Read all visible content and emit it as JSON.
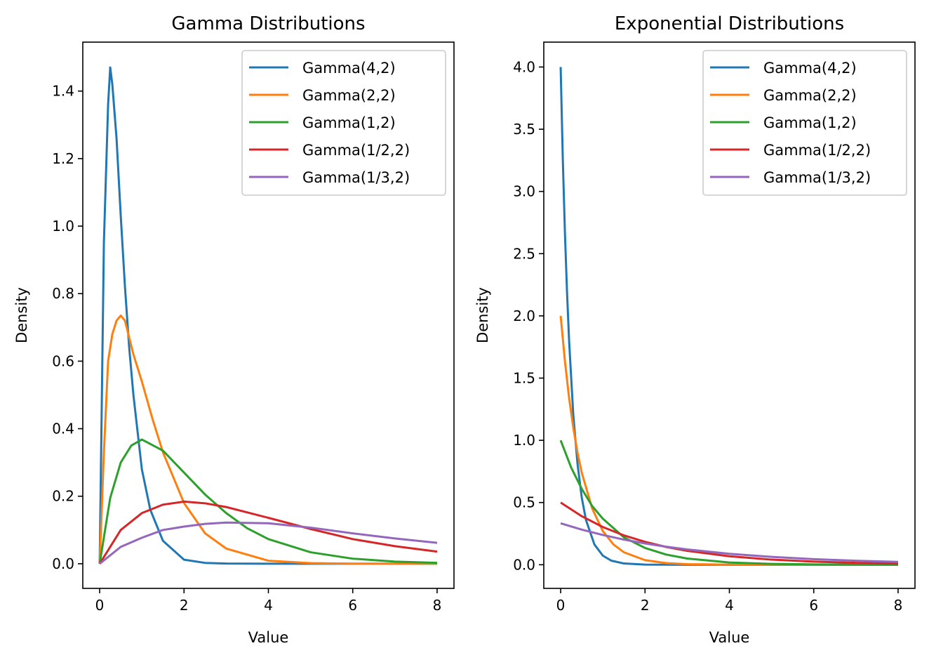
{
  "chart_data": [
    {
      "type": "line",
      "title": "Gamma Distributions",
      "xlabel": "Value",
      "ylabel": "Density",
      "xlim": [
        -0.4,
        8.4
      ],
      "ylim": [
        -0.073,
        1.545
      ],
      "xticks": [
        0,
        2,
        4,
        6,
        8
      ],
      "xtick_labels": [
        "0",
        "2",
        "4",
        "6",
        "8"
      ],
      "yticks": [
        0.0,
        0.2,
        0.4,
        0.6,
        0.8,
        1.0,
        1.2,
        1.4
      ],
      "ytick_labels": [
        "0.0",
        "0.2",
        "0.4",
        "0.6",
        "0.8",
        "1.0",
        "1.2",
        "1.4"
      ],
      "legend_position": "upper-right",
      "grid": false,
      "series": [
        {
          "name": "Gamma(4,2)",
          "color": "#1f77b4",
          "x": [
            0,
            0.1,
            0.2,
            0.25,
            0.3,
            0.4,
            0.5,
            0.6,
            0.7,
            0.8,
            1.0,
            1.2,
            1.5,
            2.0,
            2.5,
            3,
            4,
            5,
            6,
            7,
            8
          ],
          "y": [
            0,
            0.95,
            1.36,
            1.47,
            1.42,
            1.26,
            1.03,
            0.82,
            0.64,
            0.5,
            0.28,
            0.16,
            0.068,
            0.012,
            0.0025,
            0.0005,
            0,
            0,
            0,
            0,
            0
          ]
        },
        {
          "name": "Gamma(2,2)",
          "color": "#ff7f0e",
          "x": [
            0,
            0.1,
            0.2,
            0.3,
            0.4,
            0.5,
            0.6,
            0.7,
            0.8,
            1.0,
            1.25,
            1.5,
            2.0,
            2.5,
            3,
            4,
            5,
            6,
            7,
            8
          ],
          "y": [
            0,
            0.33,
            0.6,
            0.68,
            0.72,
            0.735,
            0.72,
            0.67,
            0.62,
            0.54,
            0.43,
            0.33,
            0.18,
            0.09,
            0.045,
            0.009,
            0.002,
            0,
            0,
            0
          ]
        },
        {
          "name": "Gamma(1,2)",
          "color": "#2ca02c",
          "x": [
            0,
            0.25,
            0.5,
            0.75,
            1,
            1.5,
            2,
            2.5,
            3,
            3.5,
            4,
            5,
            6,
            7,
            8
          ],
          "y": [
            0,
            0.195,
            0.3,
            0.35,
            0.368,
            0.335,
            0.27,
            0.205,
            0.15,
            0.105,
            0.073,
            0.034,
            0.015,
            0.0064,
            0.0027
          ]
        },
        {
          "name": "Gamma(1/2,2)",
          "color": "#d62728",
          "x": [
            0,
            0.5,
            1,
            1.5,
            2,
            2.5,
            3,
            4,
            5,
            6,
            7,
            8
          ],
          "y": [
            0,
            0.1,
            0.15,
            0.175,
            0.184,
            0.179,
            0.168,
            0.136,
            0.103,
            0.073,
            0.052,
            0.036
          ]
        },
        {
          "name": "Gamma(1/3,2)",
          "color": "#9467bd",
          "x": [
            0,
            0.5,
            1,
            1.5,
            2,
            2.5,
            3,
            4,
            5,
            6,
            7,
            8
          ],
          "y": [
            0,
            0.05,
            0.077,
            0.1,
            0.11,
            0.118,
            0.122,
            0.12,
            0.107,
            0.09,
            0.075,
            0.062
          ]
        }
      ]
    },
    {
      "type": "line",
      "title": "Exponential Distributions",
      "xlabel": "Value",
      "ylabel": "Density",
      "xlim": [
        -0.4,
        8.4
      ],
      "ylim": [
        -0.19,
        4.2
      ],
      "xticks": [
        0,
        2,
        4,
        6,
        8
      ],
      "xtick_labels": [
        "0",
        "2",
        "4",
        "6",
        "8"
      ],
      "yticks": [
        0.0,
        0.5,
        1.0,
        1.5,
        2.0,
        2.5,
        3.0,
        3.5,
        4.0
      ],
      "ytick_labels": [
        "0.0",
        "0.5",
        "1.0",
        "1.5",
        "2.0",
        "2.5",
        "3.0",
        "3.5",
        "4.0"
      ],
      "legend_position": "upper-right",
      "grid": false,
      "series": [
        {
          "name": "Gamma(4,2)",
          "color": "#1f77b4",
          "x": [
            0,
            0.05,
            0.1,
            0.15,
            0.2,
            0.3,
            0.4,
            0.5,
            0.6,
            0.8,
            1.0,
            1.2,
            1.5,
            2,
            3,
            4,
            5,
            6,
            7,
            8
          ],
          "y": [
            4.0,
            3.27,
            2.68,
            2.2,
            1.8,
            1.2,
            0.81,
            0.54,
            0.36,
            0.163,
            0.073,
            0.033,
            0.01,
            0.001,
            0,
            0,
            0,
            0,
            0,
            0
          ]
        },
        {
          "name": "Gamma(2,2)",
          "color": "#ff7f0e",
          "x": [
            0,
            0.1,
            0.2,
            0.3,
            0.4,
            0.5,
            0.75,
            1.0,
            1.25,
            1.5,
            2,
            2.5,
            3,
            4,
            5,
            6,
            7,
            8
          ],
          "y": [
            2.0,
            1.64,
            1.34,
            1.1,
            0.9,
            0.74,
            0.45,
            0.27,
            0.164,
            0.1,
            0.037,
            0.013,
            0.005,
            0.0007,
            0,
            0,
            0,
            0
          ]
        },
        {
          "name": "Gamma(1,2)",
          "color": "#2ca02c",
          "x": [
            0,
            0.25,
            0.5,
            0.75,
            1,
            1.5,
            2,
            2.5,
            3,
            4,
            5,
            6,
            7,
            8
          ],
          "y": [
            1.0,
            0.78,
            0.61,
            0.47,
            0.37,
            0.22,
            0.135,
            0.082,
            0.05,
            0.018,
            0.0067,
            0.0025,
            0.0009,
            0.0003
          ]
        },
        {
          "name": "Gamma(1/2,2)",
          "color": "#d62728",
          "x": [
            0,
            0.5,
            1,
            1.5,
            2,
            2.5,
            3,
            4,
            5,
            6,
            7,
            8
          ],
          "y": [
            0.5,
            0.39,
            0.303,
            0.236,
            0.184,
            0.143,
            0.112,
            0.068,
            0.041,
            0.025,
            0.015,
            0.009
          ]
        },
        {
          "name": "Gamma(1/3,2)",
          "color": "#9467bd",
          "x": [
            0,
            0.5,
            1,
            1.5,
            2,
            2.5,
            3,
            4,
            5,
            6,
            7,
            8
          ],
          "y": [
            0.333,
            0.282,
            0.239,
            0.202,
            0.171,
            0.145,
            0.123,
            0.088,
            0.063,
            0.045,
            0.032,
            0.023
          ]
        }
      ]
    }
  ]
}
